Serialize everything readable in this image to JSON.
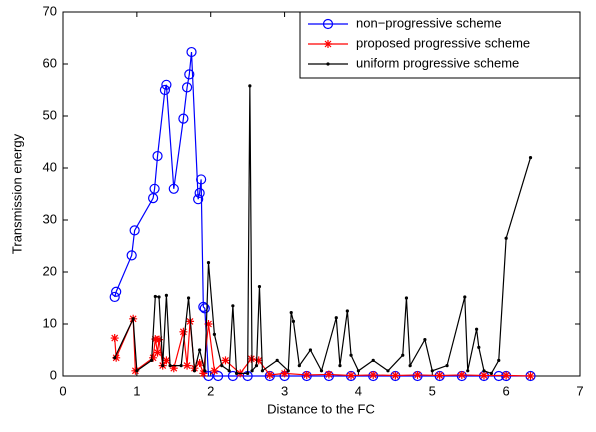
{
  "chart_data": {
    "type": "line",
    "xlabel": "Distance to the FC",
    "ylabel": "Transmission energy",
    "xlim": [
      0,
      7
    ],
    "ylim": [
      0,
      70
    ],
    "xticks": [
      0,
      1,
      2,
      3,
      4,
      5,
      6,
      7
    ],
    "yticks": [
      0,
      10,
      20,
      30,
      40,
      50,
      60,
      70
    ],
    "grid": false,
    "legend": "top-right",
    "series": [
      {
        "name": "non−progressive scheme",
        "color": "#0000ff",
        "marker": "o",
        "x": [
          0.7,
          0.72,
          0.93,
          0.97,
          1.22,
          1.24,
          1.28,
          1.38,
          1.4,
          1.5,
          1.63,
          1.68,
          1.71,
          1.74,
          1.83,
          1.85,
          1.87,
          1.9,
          1.92,
          1.97,
          2.1,
          2.3,
          2.5,
          2.8,
          3.0,
          3.3,
          3.6,
          3.9,
          4.2,
          4.5,
          4.8,
          5.1,
          5.4,
          5.7,
          5.9,
          6.0,
          6.33
        ],
        "values": [
          15.2,
          16.2,
          23.2,
          28,
          34.2,
          36,
          42.3,
          55,
          56,
          36,
          49.5,
          55.5,
          58,
          62.3,
          34,
          35.2,
          37.8,
          13.3,
          13,
          0,
          0,
          0,
          0,
          0,
          0,
          0,
          0,
          0,
          0,
          0,
          0,
          0,
          0,
          0,
          0,
          0,
          0
        ]
      },
      {
        "name": "proposed progressive scheme",
        "color": "#ff0000",
        "marker": "*",
        "x": [
          0.7,
          0.72,
          0.95,
          0.98,
          1.22,
          1.25,
          1.28,
          1.3,
          1.35,
          1.4,
          1.5,
          1.63,
          1.68,
          1.72,
          1.78,
          1.85,
          1.9,
          1.97,
          2.05,
          2.2,
          2.4,
          2.55,
          2.65,
          2.8,
          3.0,
          3.3,
          3.6,
          3.9,
          4.2,
          4.5,
          4.8,
          5.1,
          5.4,
          5.7,
          6.0,
          6.33
        ],
        "values": [
          7.3,
          3.5,
          11,
          1,
          3.5,
          7.1,
          4.5,
          7,
          2,
          3,
          1.5,
          8.5,
          2,
          10.5,
          1.5,
          2.5,
          0.5,
          10,
          1,
          3,
          0.5,
          3.3,
          3,
          0.2,
          0.5,
          0.2,
          0.3,
          0.1,
          0.2,
          0.1,
          0.2,
          0.1,
          0.2,
          0.1,
          0.1,
          0
        ]
      },
      {
        "name": "uniform progressive scheme",
        "color": "#000000",
        "marker": ".",
        "x": [
          0.7,
          0.95,
          1.0,
          1.2,
          1.25,
          1.3,
          1.35,
          1.4,
          1.45,
          1.6,
          1.7,
          1.78,
          1.85,
          1.92,
          1.97,
          2.05,
          2.15,
          2.25,
          2.3,
          2.35,
          2.5,
          2.53,
          2.56,
          2.62,
          2.66,
          2.7,
          2.9,
          3.05,
          3.09,
          3.12,
          3.2,
          3.35,
          3.5,
          3.7,
          3.75,
          3.85,
          3.9,
          4.0,
          4.2,
          4.4,
          4.6,
          4.65,
          4.7,
          4.9,
          5.0,
          5.2,
          5.44,
          5.48,
          5.6,
          5.63,
          5.7,
          5.8,
          5.9,
          6.0,
          6.33
        ],
        "values": [
          3.5,
          11,
          1,
          3,
          15.3,
          15.2,
          2,
          15.5,
          2,
          2,
          15,
          1,
          5,
          1,
          21.8,
          8,
          2,
          1,
          13.5,
          0.5,
          0.5,
          55.8,
          1,
          2,
          17.2,
          1,
          3,
          1,
          12.2,
          10.5,
          2,
          5,
          1,
          11.2,
          2,
          12.5,
          4,
          1,
          3,
          1,
          4,
          15,
          2,
          7,
          1,
          2,
          15.2,
          1,
          9,
          5.5,
          1,
          0.5,
          3,
          26.5,
          42
        ]
      }
    ]
  }
}
